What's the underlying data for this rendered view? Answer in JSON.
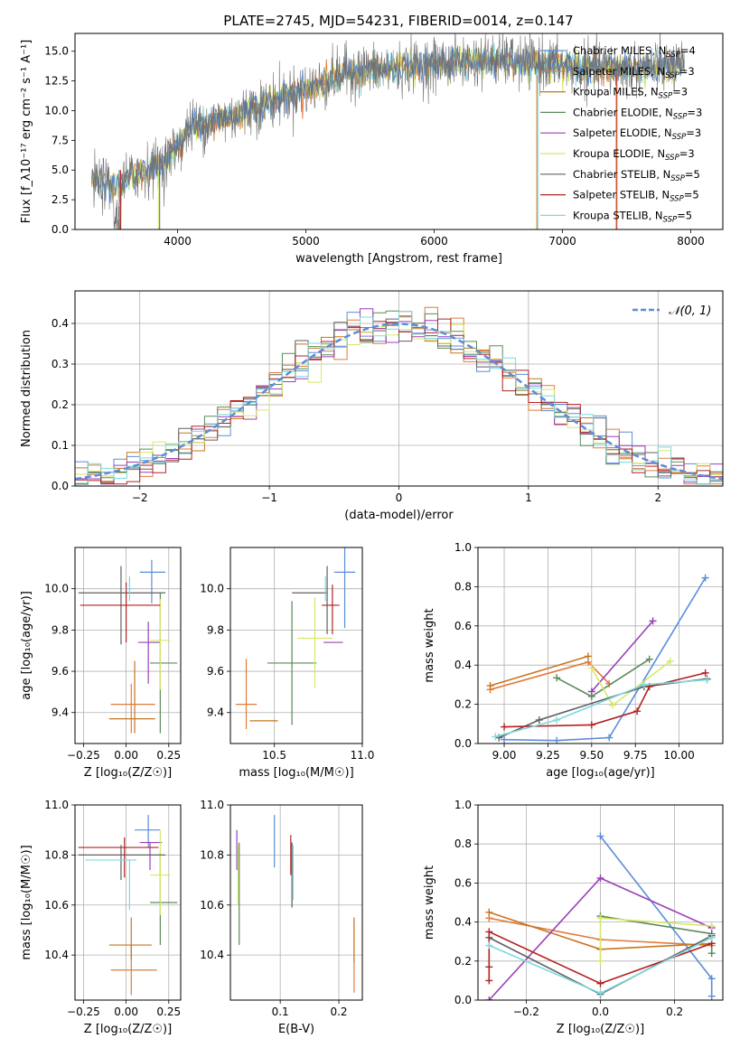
{
  "figure_title": "PLATE=2745, MJD=54231, FIBERID=0014, z=0.147",
  "colors": {
    "Chabrier MILES": "#5b8dd9",
    "Salpeter MILES": "#e07b39",
    "Kroupa MILES": "#c8751f",
    "Chabrier ELODIE": "#5a8a5a",
    "Salpeter ELODIE": "#9b3fb5",
    "Kroupa ELODIE": "#d8e86a",
    "Chabrier STELIB": "#606060",
    "Salpeter STELIB": "#b22222",
    "Kroupa STELIB": "#7fd8e0"
  },
  "chart_data": [
    {
      "id": "spectrum",
      "type": "line",
      "xlabel": "wavelength [Angstrom, rest frame]",
      "ylabel": "Flux [f_λ10⁻¹⁷ erg cm⁻² s⁻¹ A⁻¹]",
      "xlim": [
        3200,
        8250
      ],
      "ylim": [
        0,
        16.5
      ],
      "xticks": [
        4000,
        5000,
        6000,
        7000,
        8000
      ],
      "yticks": [
        0.0,
        2.5,
        5.0,
        7.5,
        10.0,
        12.5,
        15.0
      ],
      "xtick_labels": [
        "4000",
        "5000",
        "6000",
        "7000",
        "8000"
      ],
      "ytick_labels": [
        "0.0",
        "2.5",
        "5.0",
        "7.5",
        "10.0",
        "12.5",
        "15.0"
      ],
      "legend_location": "right",
      "legend": [
        {
          "label": "Chabrier MILES, N",
          "sub": "SSP",
          "tail": "=4"
        },
        {
          "label": "Salpeter MILES, N",
          "sub": "SSP",
          "tail": "=3"
        },
        {
          "label": "Kroupa MILES, N",
          "sub": "SSP",
          "tail": "=3"
        },
        {
          "label": "Chabrier ELODIE, N",
          "sub": "SSP",
          "tail": "=3"
        },
        {
          "label": "Salpeter ELODIE, N",
          "sub": "SSP",
          "tail": "=3"
        },
        {
          "label": "Kroupa ELODIE, N",
          "sub": "SSP",
          "tail": "=3"
        },
        {
          "label": "Chabrier STELIB, N",
          "sub": "SSP",
          "tail": "=5"
        },
        {
          "label": "Salpeter STELIB, N",
          "sub": "SSP",
          "tail": "=5"
        },
        {
          "label": "Kroupa STELIB, N",
          "sub": "SSP",
          "tail": "=5"
        }
      ],
      "continuum": {
        "x": [
          3330,
          3500,
          3700,
          3900,
          4100,
          4300,
          4500,
          4700,
          4900,
          5100,
          5300,
          5500,
          5700,
          5900,
          6100,
          6300,
          6500,
          6700,
          6900,
          7100,
          7300,
          7500,
          7700,
          7900
        ],
        "y": [
          4.0,
          3.6,
          4.8,
          5.6,
          8.6,
          9.2,
          9.8,
          10.7,
          11.5,
          12.1,
          13.2,
          13.4,
          13.5,
          13.8,
          14.0,
          14.2,
          14.3,
          14.0,
          14.0,
          13.6,
          13.6,
          13.5,
          13.6,
          13.7
        ]
      }
    },
    {
      "id": "residuals",
      "type": "histogram",
      "xlabel": "(data-model)/error",
      "ylabel": "Normed distribution",
      "xlim": [
        -2.5,
        2.5
      ],
      "ylim": [
        0,
        0.48
      ],
      "xticks": [
        -2,
        -1,
        0,
        1,
        2
      ],
      "xtick_labels": [
        "−2",
        "−1",
        "0",
        "1",
        "2"
      ],
      "yticks": [
        0.0,
        0.1,
        0.2,
        0.3,
        0.4
      ],
      "ytick_labels": [
        "0.0",
        "0.1",
        "0.2",
        "0.3",
        "0.4"
      ],
      "grid": true,
      "legend_label": "𝒩(0, 1)",
      "legend_location": "top-right",
      "bin_width": 0.1,
      "reference_curve": "normal(0,1) density"
    },
    {
      "id": "age_vs_Z",
      "type": "scatter",
      "xlabel": "Z [log₁₀(Z/Z☉)]",
      "ylabel": "age  [log₁₀(age/yr)]",
      "xlim": [
        -0.3,
        0.32
      ],
      "ylim": [
        9.25,
        10.2
      ],
      "xticks": [
        -0.25,
        0.0,
        0.25
      ],
      "xtick_labels": [
        "−0.25",
        "0.00",
        "0.25"
      ],
      "yticks": [
        9.4,
        9.6,
        9.8,
        10.0
      ],
      "ytick_labels": [
        "9.4",
        "9.6",
        "9.8",
        "10.0"
      ],
      "grid": true,
      "points": [
        {
          "series": "Chabrier MILES",
          "x": 0.15,
          "y": 10.08,
          "xerr": [
            0.07,
            0.08
          ],
          "yerr": [
            0.15,
            0.06
          ]
        },
        {
          "series": "Salpeter MILES",
          "x": 0.03,
          "y": 9.44,
          "xerr": [
            0.12,
            0.14
          ],
          "yerr": [
            0.14,
            0.1
          ]
        },
        {
          "series": "Kroupa MILES",
          "x": 0.05,
          "y": 9.37,
          "xerr": [
            0.15,
            0.12
          ],
          "yerr": [
            0.07,
            0.28
          ]
        },
        {
          "series": "Chabrier ELODIE",
          "x": 0.2,
          "y": 9.64,
          "xerr": [
            0.06,
            0.1
          ],
          "yerr": [
            0.34,
            0.34
          ]
        },
        {
          "series": "Salpeter ELODIE",
          "x": 0.13,
          "y": 9.74,
          "xerr": [
            0.06,
            0.07
          ],
          "yerr": [
            0.2,
            0.1
          ]
        },
        {
          "series": "Kroupa ELODIE",
          "x": 0.2,
          "y": 9.75,
          "xerr": [
            0.06,
            0.06
          ],
          "yerr": [
            0.24,
            0.2
          ]
        },
        {
          "series": "Chabrier STELIB",
          "x": -0.03,
          "y": 9.98,
          "xerr": [
            0.25,
            0.26
          ],
          "yerr": [
            0.25,
            0.13
          ]
        },
        {
          "series": "Salpeter STELIB",
          "x": 0.0,
          "y": 9.92,
          "xerr": [
            0.27,
            0.2
          ],
          "yerr": [
            0.18,
            0.11
          ]
        },
        {
          "series": "Kroupa STELIB",
          "x": 0.02,
          "y": 10.0,
          "xerr": [
            0.02,
            0.02
          ],
          "yerr": [
            0.06,
            0.06
          ]
        }
      ]
    },
    {
      "id": "age_vs_mass",
      "type": "scatter",
      "xlabel": "mass [log₁₀(M/M☉)]",
      "ylabel": "",
      "xlim": [
        10.25,
        11.0
      ],
      "ylim": [
        9.25,
        10.2
      ],
      "xticks": [
        10.5,
        11.0
      ],
      "xtick_labels": [
        "10.5",
        "11.0"
      ],
      "yticks": [
        9.4,
        9.6,
        9.8,
        10.0
      ],
      "ytick_labels": [
        "9.4",
        "9.6",
        "9.8",
        "10.0"
      ],
      "grid": true,
      "points": [
        {
          "series": "Chabrier MILES",
          "x": 10.9,
          "y": 10.08,
          "xerr": [
            0.06,
            0.06
          ],
          "yerr": [
            0.27,
            0.12
          ]
        },
        {
          "series": "Salpeter MILES",
          "x": 10.34,
          "y": 9.44,
          "xerr": [
            0.06,
            0.06
          ],
          "yerr": [
            0.12,
            0.22
          ]
        },
        {
          "series": "Kroupa MILES",
          "x": 10.44,
          "y": 9.36,
          "xerr": [
            0.08,
            0.08
          ],
          "yerr": [
            0.0,
            0.0
          ]
        },
        {
          "series": "Chabrier ELODIE",
          "x": 10.6,
          "y": 9.64,
          "xerr": [
            0.14,
            0.14
          ],
          "yerr": [
            0.3,
            0.3
          ]
        },
        {
          "series": "Salpeter ELODIE",
          "x": 10.84,
          "y": 9.74,
          "xerr": [
            0.06,
            0.05
          ],
          "yerr": [
            0.0,
            0.0
          ]
        },
        {
          "series": "Kroupa ELODIE",
          "x": 10.73,
          "y": 9.76,
          "xerr": [
            0.1,
            0.1
          ],
          "yerr": [
            0.24,
            0.2
          ]
        },
        {
          "series": "Chabrier STELIB",
          "x": 10.8,
          "y": 9.98,
          "xerr": [
            0.2,
            0.0
          ],
          "yerr": [
            0.2,
            0.13
          ]
        },
        {
          "series": "Salpeter STELIB",
          "x": 10.83,
          "y": 9.92,
          "xerr": [
            0.06,
            0.04
          ],
          "yerr": [
            0.14,
            0.1
          ]
        },
        {
          "series": "Kroupa STELIB",
          "x": 10.79,
          "y": 10.0,
          "xerr": [
            0.0,
            0.0
          ],
          "yerr": [
            0.06,
            0.06
          ]
        }
      ]
    },
    {
      "id": "weight_vs_age",
      "type": "line",
      "xlabel": "age  [log₁₀(age/yr)]",
      "ylabel": "mass weight",
      "xlim": [
        8.85,
        10.25
      ],
      "ylim": [
        0,
        1.0
      ],
      "xticks": [
        9.0,
        9.25,
        9.5,
        9.75,
        10.0
      ],
      "xtick_labels": [
        "9.00",
        "9.25",
        "9.50",
        "9.75",
        "10.00"
      ],
      "yticks": [
        0.0,
        0.2,
        0.4,
        0.6,
        0.8,
        1.0
      ],
      "ytick_labels": [
        "0.0",
        "0.2",
        "0.4",
        "0.6",
        "0.8",
        "1.0"
      ],
      "grid": true,
      "series": [
        {
          "name": "Chabrier MILES",
          "x": [
            9.0,
            9.3,
            9.6,
            10.15
          ],
          "y": [
            0.02,
            0.015,
            0.03,
            0.845
          ]
        },
        {
          "name": "Salpeter MILES",
          "x": [
            8.92,
            9.48,
            9.6
          ],
          "y": [
            0.275,
            0.415,
            0.305
          ]
        },
        {
          "name": "Kroupa MILES",
          "x": [
            8.92,
            9.48
          ],
          "y": [
            0.295,
            0.445
          ]
        },
        {
          "name": "Chabrier ELODIE",
          "x": [
            9.3,
            9.5,
            9.83
          ],
          "y": [
            0.335,
            0.24,
            0.43
          ]
        },
        {
          "name": "Salpeter ELODIE",
          "x": [
            9.5,
            9.85
          ],
          "y": [
            0.265,
            0.625
          ]
        },
        {
          "name": "Kroupa ELODIE",
          "x": [
            9.5,
            9.62,
            9.95
          ],
          "y": [
            0.385,
            0.195,
            0.42
          ]
        },
        {
          "name": "Chabrier STELIB",
          "x": [
            8.97,
            9.2,
            9.8,
            10.16
          ],
          "y": [
            0.03,
            0.12,
            0.29,
            0.33
          ]
        },
        {
          "name": "Salpeter STELIB",
          "x": [
            9.0,
            9.5,
            9.76,
            9.83,
            10.15
          ],
          "y": [
            0.085,
            0.095,
            0.165,
            0.29,
            0.36
          ]
        },
        {
          "name": "Kroupa STELIB",
          "x": [
            8.95,
            9.3,
            9.8,
            10.16
          ],
          "y": [
            0.035,
            0.12,
            0.3,
            0.325
          ]
        }
      ]
    },
    {
      "id": "mass_vs_Z",
      "type": "scatter",
      "xlabel": "Z [log₁₀(Z/Z☉)]",
      "ylabel": "mass [log₁₀(M/M☉)]",
      "xlim": [
        -0.3,
        0.32
      ],
      "ylim": [
        10.22,
        11.0
      ],
      "xticks": [
        -0.25,
        0.0,
        0.25
      ],
      "xtick_labels": [
        "−0.25",
        "0.00",
        "0.25"
      ],
      "yticks": [
        10.4,
        10.6,
        10.8,
        11.0
      ],
      "ytick_labels": [
        "10.4",
        "10.6",
        "10.8",
        "11.0"
      ],
      "grid": true,
      "points": [
        {
          "series": "Chabrier MILES",
          "x": 0.13,
          "y": 10.9,
          "xerr": [
            0.08,
            0.07
          ],
          "yerr": [
            0.07,
            0.06
          ]
        },
        {
          "series": "Salpeter MILES",
          "x": 0.03,
          "y": 10.34,
          "xerr": [
            0.12,
            0.15
          ],
          "yerr": [
            0.1,
            0.1
          ]
        },
        {
          "series": "Kroupa MILES",
          "x": 0.03,
          "y": 10.44,
          "xerr": [
            0.13,
            0.12
          ],
          "yerr": [
            0.06,
            0.11
          ]
        },
        {
          "series": "Chabrier ELODIE",
          "x": 0.2,
          "y": 10.61,
          "xerr": [
            0.06,
            0.1
          ],
          "yerr": [
            0.17,
            0.2
          ]
        },
        {
          "series": "Salpeter ELODIE",
          "x": 0.14,
          "y": 10.85,
          "xerr": [
            0.06,
            0.07
          ],
          "yerr": [
            0.11,
            0.0
          ]
        },
        {
          "series": "Kroupa ELODIE",
          "x": 0.2,
          "y": 10.72,
          "xerr": [
            0.06,
            0.06
          ],
          "yerr": [
            0.16,
            0.18
          ]
        },
        {
          "series": "Chabrier STELIB",
          "x": -0.03,
          "y": 10.8,
          "xerr": [
            0.25,
            0.26
          ],
          "yerr": [
            0.1,
            0.04
          ]
        },
        {
          "series": "Salpeter STELIB",
          "x": -0.01,
          "y": 10.83,
          "xerr": [
            0.27,
            0.2
          ],
          "yerr": [
            0.12,
            0.04
          ]
        },
        {
          "series": "Kroupa STELIB",
          "x": 0.02,
          "y": 10.78,
          "xerr": [
            0.26,
            0.04
          ],
          "yerr": [
            0.2,
            0.0
          ]
        }
      ]
    },
    {
      "id": "mass_vs_ebv",
      "type": "scatter",
      "xlabel": "E(B-V)",
      "ylabel": "",
      "xlim": [
        0.015,
        0.24
      ],
      "ylim": [
        10.22,
        11.0
      ],
      "xticks": [
        0.1,
        0.2
      ],
      "xtick_labels": [
        "0.1",
        "0.2"
      ],
      "yticks": [
        10.4,
        10.6,
        10.8,
        11.0
      ],
      "ytick_labels": [
        "10.4",
        "10.6",
        "10.8",
        "11.0"
      ],
      "grid": true,
      "points": [
        {
          "series": "Chabrier MILES",
          "x": 0.09,
          "y": 10.85,
          "yerr": [
            0.1,
            0.11
          ]
        },
        {
          "series": "Salpeter MILES",
          "x": 0.226,
          "y": 10.39,
          "yerr": [
            0.14,
            0.15
          ]
        },
        {
          "series": "Kroupa MILES",
          "x": 0.226,
          "y": 10.42,
          "yerr": [
            0.05,
            0.13
          ]
        },
        {
          "series": "Chabrier ELODIE",
          "x": 0.03,
          "y": 10.65,
          "yerr": [
            0.21,
            0.2
          ]
        },
        {
          "series": "Salpeter ELODIE",
          "x": 0.026,
          "y": 10.82,
          "yerr": [
            0.08,
            0.08
          ]
        },
        {
          "series": "Kroupa ELODIE",
          "x": 0.028,
          "y": 10.72,
          "yerr": [
            0.12,
            0.12
          ]
        },
        {
          "series": "Chabrier STELIB",
          "x": 0.12,
          "y": 10.78,
          "yerr": [
            0.19,
            0.07
          ]
        },
        {
          "series": "Salpeter STELIB",
          "x": 0.118,
          "y": 10.82,
          "yerr": [
            0.1,
            0.06
          ]
        },
        {
          "series": "Kroupa STELIB",
          "x": 0.122,
          "y": 10.72,
          "yerr": [
            0.1,
            0.12
          ]
        }
      ]
    },
    {
      "id": "weight_vs_Z",
      "type": "line",
      "xlabel": "Z [log₁₀(Z/Z☉)]",
      "ylabel": "mass weight",
      "xlim": [
        -0.33,
        0.33
      ],
      "ylim": [
        0,
        1.0
      ],
      "xticks": [
        -0.2,
        0.0,
        0.2
      ],
      "xtick_labels": [
        "−0.2",
        "0.0",
        "0.2"
      ],
      "yticks": [
        0.0,
        0.2,
        0.4,
        0.6,
        0.8,
        1.0
      ],
      "ytick_labels": [
        "0.0",
        "0.2",
        "0.4",
        "0.6",
        "0.8",
        "1.0"
      ],
      "grid": true,
      "series": [
        {
          "name": "Chabrier MILES",
          "x": [
            0.0,
            0.3,
            0.3
          ],
          "y": [
            0.84,
            0.11,
            0.02
          ]
        },
        {
          "name": "Salpeter MILES",
          "x": [
            -0.3,
            0.0,
            0.3
          ],
          "y": [
            0.42,
            0.31,
            0.28
          ]
        },
        {
          "name": "Kroupa MILES",
          "x": [
            -0.3,
            0.0,
            0.3
          ],
          "y": [
            0.45,
            0.26,
            0.29
          ]
        },
        {
          "name": "Chabrier ELODIE",
          "x": [
            0.0,
            0.3,
            0.3
          ],
          "y": [
            0.43,
            0.34,
            0.24
          ]
        },
        {
          "name": "Salpeter ELODIE",
          "x": [
            -0.3,
            0.0,
            0.3
          ],
          "y": [
            0.0,
            0.625,
            0.37
          ]
        },
        {
          "name": "Kroupa ELODIE",
          "x": [
            0.0,
            0.0,
            0.3
          ],
          "y": [
            0.2,
            0.42,
            0.38
          ]
        },
        {
          "name": "Chabrier STELIB",
          "x": [
            -0.3,
            0.0,
            0.3
          ],
          "y": [
            0.32,
            0.03,
            0.33
          ]
        },
        {
          "name": "Salpeter STELIB",
          "x": [
            -0.3,
            -0.3,
            -0.3,
            0.0,
            0.3
          ],
          "y": [
            0.1,
            0.17,
            0.35,
            0.085,
            0.29
          ]
        },
        {
          "name": "Kroupa STELIB",
          "x": [
            -0.3,
            0.0,
            0.3
          ],
          "y": [
            0.28,
            0.035,
            0.32
          ]
        }
      ]
    }
  ]
}
